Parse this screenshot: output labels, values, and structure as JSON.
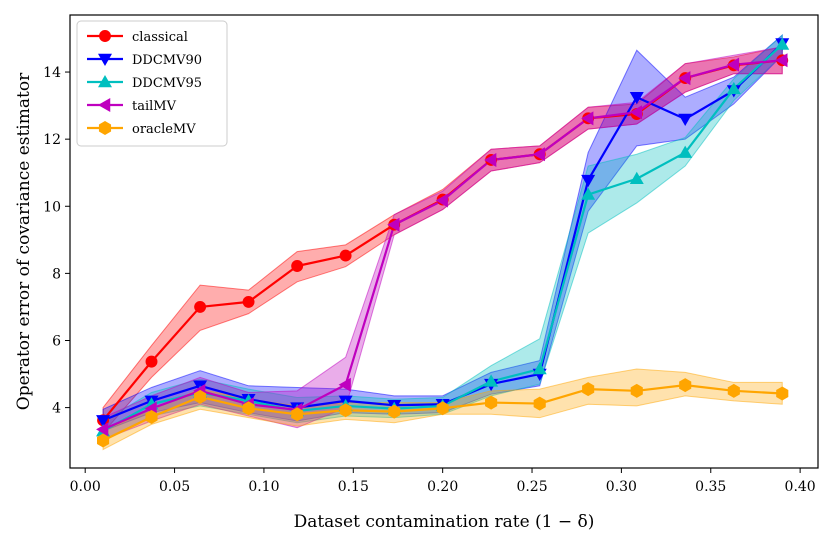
{
  "chart_data": {
    "type": "line",
    "xlabel": "Dataset contamination rate (1 − δ)",
    "ylabel": "Operator error of covariance estimator",
    "xlim": [
      -0.0085,
      0.41
    ],
    "ylim": [
      2.2,
      15.7
    ],
    "xticks": [
      0.0,
      0.05,
      0.1,
      0.15,
      0.2,
      0.25,
      0.3,
      0.35,
      0.4
    ],
    "xtick_labels": [
      "0.00",
      "0.05",
      "0.10",
      "0.15",
      "0.20",
      "0.25",
      "0.30",
      "0.35",
      "0.40"
    ],
    "yticks": [
      4,
      6,
      8,
      10,
      12,
      14
    ],
    "ytick_labels": [
      "4",
      "6",
      "8",
      "10",
      "12",
      "14"
    ],
    "legend_position": "top-left",
    "x": [
      0.01,
      0.0371,
      0.0643,
      0.0914,
      0.1186,
      0.1457,
      0.1729,
      0.2,
      0.2271,
      0.2543,
      0.2814,
      0.3086,
      0.3357,
      0.3629,
      0.39
    ],
    "series": [
      {
        "name": "classical",
        "color": "#ff0000",
        "marker": "circle",
        "values": [
          3.62,
          5.37,
          7.0,
          7.15,
          8.22,
          8.53,
          9.45,
          10.2,
          11.38,
          11.55,
          12.62,
          12.75,
          13.82,
          14.2,
          14.35
        ],
        "lower": [
          3.25,
          4.9,
          6.3,
          6.8,
          7.75,
          8.2,
          9.15,
          9.9,
          11.05,
          11.3,
          12.3,
          12.45,
          13.4,
          13.95,
          13.95
        ],
        "upper": [
          4.0,
          5.85,
          7.65,
          7.5,
          8.65,
          8.85,
          9.75,
          10.5,
          11.7,
          11.8,
          12.95,
          13.05,
          14.25,
          14.45,
          14.75
        ]
      },
      {
        "name": "DDCMV90",
        "color": "#0000ff",
        "marker": "triangle-down",
        "values": [
          3.62,
          4.2,
          4.65,
          4.25,
          4.0,
          4.2,
          4.07,
          4.1,
          4.7,
          5.0,
          10.78,
          13.25,
          12.6,
          13.45,
          14.85
        ],
        "lower": [
          3.3,
          3.85,
          4.15,
          3.85,
          3.6,
          3.85,
          3.8,
          3.85,
          4.4,
          4.65,
          9.85,
          11.8,
          12.0,
          13.05,
          14.5
        ],
        "upper": [
          3.95,
          4.6,
          5.1,
          4.65,
          4.6,
          4.55,
          4.35,
          4.35,
          5.05,
          5.4,
          11.6,
          14.65,
          13.25,
          13.85,
          15.1
        ]
      },
      {
        "name": "DDCMV95",
        "color": "#00bfbf",
        "marker": "triangle-up",
        "values": [
          3.3,
          4.1,
          4.45,
          4.2,
          3.9,
          4.05,
          3.97,
          4.05,
          4.78,
          5.15,
          10.35,
          10.82,
          11.6,
          13.5,
          14.82
        ],
        "lower": [
          3.0,
          3.75,
          4.05,
          3.8,
          3.55,
          3.75,
          3.7,
          3.8,
          4.35,
          4.7,
          9.2,
          10.1,
          11.2,
          13.15,
          14.5
        ],
        "upper": [
          3.6,
          4.45,
          4.85,
          4.55,
          4.3,
          4.35,
          4.25,
          4.3,
          5.25,
          6.05,
          11.2,
          11.55,
          12.05,
          13.8,
          15.1
        ]
      },
      {
        "name": "tailMV",
        "color": "#bf00bf",
        "marker": "triangle-left",
        "values": [
          3.35,
          3.97,
          4.5,
          4.1,
          3.93,
          4.68,
          9.45,
          10.17,
          11.38,
          11.55,
          12.62,
          12.8,
          13.82,
          14.22,
          14.35
        ],
        "lower": [
          3.05,
          3.6,
          4.1,
          3.75,
          3.4,
          4.0,
          9.15,
          9.9,
          11.05,
          11.3,
          12.3,
          12.45,
          13.4,
          13.95,
          13.95
        ],
        "upper": [
          3.7,
          4.35,
          4.9,
          4.45,
          4.5,
          5.5,
          9.75,
          10.45,
          11.7,
          11.8,
          12.95,
          13.1,
          14.25,
          14.5,
          14.75
        ]
      },
      {
        "name": "oracleMV",
        "color": "#ffa500",
        "marker": "hexagon",
        "values": [
          3.02,
          3.72,
          4.32,
          3.98,
          3.8,
          3.92,
          3.88,
          3.98,
          4.15,
          4.12,
          4.55,
          4.5,
          4.67,
          4.5,
          4.42
        ],
        "lower": [
          2.75,
          3.5,
          3.95,
          3.7,
          3.45,
          3.65,
          3.55,
          3.8,
          3.8,
          3.7,
          4.1,
          4.05,
          4.35,
          4.2,
          4.1
        ],
        "upper": [
          3.3,
          3.95,
          4.55,
          4.25,
          4.05,
          4.15,
          4.15,
          4.15,
          4.5,
          4.55,
          4.9,
          5.15,
          5.05,
          4.75,
          4.75
        ]
      }
    ]
  }
}
